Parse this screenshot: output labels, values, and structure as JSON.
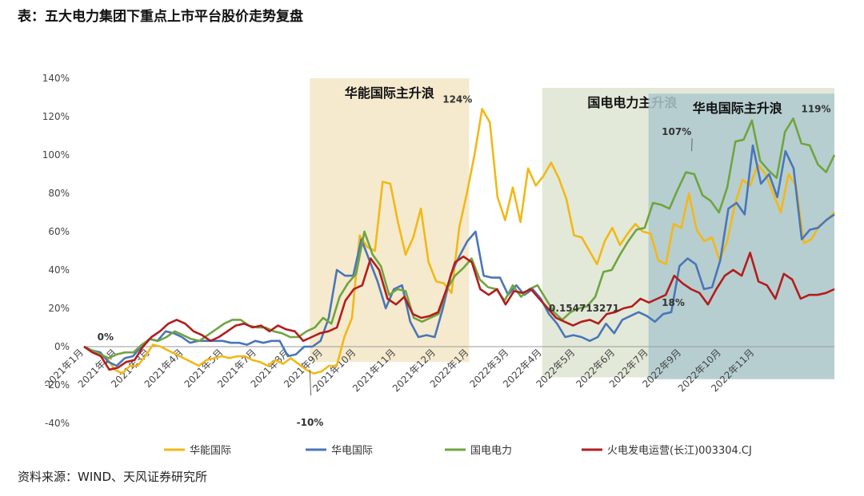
{
  "page": {
    "title": "表：五大电力集团下重点上市平台股价走势复盘",
    "source": "资料来源：WIND、天风证券研究所"
  },
  "chart_data": {
    "type": "line",
    "ylim": [
      -40,
      140
    ],
    "yticks": [
      -40,
      -20,
      0,
      20,
      40,
      60,
      80,
      100,
      120,
      140
    ],
    "ytick_labels": [
      "-40%",
      "-20%",
      "0%",
      "20%",
      "40%",
      "60%",
      "80%",
      "100%",
      "120%",
      "140%"
    ],
    "x_range": [
      0,
      113
    ],
    "x_tick_positions": [
      0,
      9,
      18,
      28,
      37,
      47,
      56,
      66,
      75,
      85,
      94,
      103
    ],
    "xtick_labels": [
      "2021年1月",
      "2021年2月",
      "2021年3月",
      "2021年4月",
      "2021年5月",
      "2021年7月",
      "2021年8月",
      "2021年9月",
      "2021年10月",
      "2021年11月",
      "2021年12月",
      "2022年1月",
      "2022年3月",
      "2022年4月",
      "2022年5月",
      "2022年6月",
      "2022年7月",
      "2022年9月",
      "2022年10月",
      "2022年11月"
    ],
    "xtick_x": [
      0,
      5,
      10,
      15,
      21,
      26,
      31,
      36,
      41,
      47,
      53,
      58,
      64,
      69,
      74,
      80,
      85,
      90,
      96,
      101
    ],
    "shaded_regions": [
      {
        "label": "华能国际主升浪",
        "x_start": 34,
        "x_end": 58,
        "y_top": 140,
        "y_bottom": -8,
        "color": "#f3e6c6"
      },
      {
        "label": "国电电力主升浪",
        "x_start": 69,
        "x_end": 113,
        "y_top": 135,
        "y_bottom": -16,
        "color": "#dde5d1"
      },
      {
        "label": "华电国际主升浪",
        "x_start": 85,
        "x_end": 113,
        "y_top": 132,
        "y_bottom": -17,
        "color": "#aec9cf"
      }
    ],
    "series": [
      {
        "name": "华能国际",
        "color": "#f2b817",
        "values": [
          0,
          -2,
          -4,
          -6,
          -12,
          -14,
          -10,
          -10,
          -5,
          1,
          0,
          -2,
          -4,
          -6,
          -8,
          -10,
          -7,
          -6,
          -5,
          -6,
          -5,
          -5,
          -7,
          -8,
          -10,
          -7,
          -9,
          -6,
          -9,
          -12,
          -14,
          -13,
          -10,
          -10,
          5,
          15,
          58,
          52,
          50,
          86,
          85,
          65,
          48,
          57,
          72,
          44,
          34,
          33,
          28,
          62,
          80,
          100,
          124,
          117,
          78,
          66,
          83,
          65,
          93,
          84,
          89,
          96,
          88,
          77,
          58,
          57,
          50,
          43,
          55,
          62,
          53,
          59,
          64,
          60,
          59,
          45,
          43,
          64,
          62,
          80,
          61,
          55,
          57,
          45,
          55,
          74,
          87,
          84,
          95,
          90,
          80,
          70,
          90,
          84,
          54,
          56,
          63,
          66,
          70
        ],
        "x_start": 0
      },
      {
        "name": "华电国际",
        "color": "#4a76b8",
        "values": [
          0,
          -2,
          -3,
          -8,
          -10,
          -6,
          -5,
          0,
          4,
          3,
          8,
          7,
          5,
          2,
          3,
          3,
          3,
          3,
          2,
          2,
          1,
          3,
          2,
          3,
          3,
          -5,
          -4,
          0,
          0,
          3,
          15,
          40,
          37,
          37,
          56,
          45,
          34,
          20,
          30,
          32,
          13,
          5,
          6,
          5,
          20,
          38,
          47,
          55,
          60,
          37,
          36,
          36,
          27,
          32,
          27,
          30,
          25,
          17,
          12,
          5,
          6,
          5,
          3,
          5,
          12,
          7,
          14,
          16,
          18,
          16,
          13,
          17,
          18,
          42,
          46,
          43,
          30,
          31,
          45,
          72,
          75,
          69,
          105,
          85,
          90,
          78,
          102,
          93,
          56,
          61,
          62,
          66,
          69
        ],
        "x_start": 0
      },
      {
        "name": "国电电力",
        "color": "#70a440",
        "values": [
          0,
          -2,
          -4,
          -6,
          -4,
          -3,
          -3,
          1,
          4,
          3,
          5,
          8,
          6,
          4,
          3,
          6,
          9,
          12,
          14,
          14,
          11,
          10,
          10,
          8,
          7,
          5,
          5,
          8,
          10,
          15,
          12,
          26,
          33,
          38,
          60,
          48,
          42,
          27,
          30,
          29,
          15,
          13,
          15,
          17,
          30,
          37,
          41,
          46,
          35,
          31,
          30,
          24,
          32,
          26,
          30,
          32,
          25,
          18,
          14,
          18,
          20,
          21,
          26,
          39,
          40,
          48,
          55,
          61,
          62,
          75,
          74,
          72,
          82,
          91,
          90,
          79,
          76,
          70,
          83,
          107,
          108,
          118,
          97,
          92,
          88,
          112,
          119,
          106,
          105,
          95,
          91,
          100
        ],
        "x_start": 0
      },
      {
        "name": "火电发电运营(长江)003304.CJ",
        "color": "#b31d1d",
        "values": [
          0,
          -3,
          -5,
          -12,
          -11,
          -8,
          -7,
          0,
          5,
          8,
          12,
          14,
          12,
          8,
          6,
          3,
          5,
          8,
          11,
          12,
          10,
          11,
          8,
          11,
          9,
          8,
          3,
          5,
          7,
          8,
          10,
          24,
          30,
          32,
          46,
          40,
          25,
          22,
          26,
          17,
          15,
          16,
          18,
          30,
          44,
          47,
          44,
          30,
          27,
          30,
          22,
          29,
          28,
          30,
          25,
          20,
          15,
          13,
          11,
          13,
          14,
          12,
          17,
          18,
          20,
          21,
          25,
          23,
          25,
          27,
          37,
          33,
          30,
          28,
          22,
          30,
          37,
          40,
          37,
          49,
          34,
          32,
          25,
          38,
          35,
          25,
          27,
          27,
          28,
          30
        ],
        "x_start": 0
      }
    ],
    "annotations": [
      {
        "text": "0%",
        "x": 2,
        "y": 0
      },
      {
        "text": "124%",
        "x": 54,
        "y": 124
      },
      {
        "text": "-10%",
        "x": 32,
        "y": -33
      },
      {
        "text": "0.154713271",
        "x": 70,
        "y": 15
      },
      {
        "text": "18%",
        "x": 87,
        "y": 18
      },
      {
        "text": "107%",
        "x": 87,
        "y": 107
      },
      {
        "text": "119%",
        "x": 108,
        "y": 119
      }
    ],
    "legend_position": "bottom"
  }
}
